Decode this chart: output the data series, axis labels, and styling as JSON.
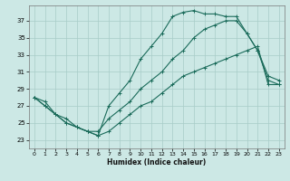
{
  "bg_color": "#cce8e5",
  "grid_color": "#a8ccc8",
  "line_color": "#1a6b5a",
  "xlabel": "Humidex (Indice chaleur)",
  "x_ticks": [
    0,
    1,
    2,
    3,
    4,
    5,
    6,
    7,
    8,
    9,
    10,
    11,
    12,
    13,
    14,
    15,
    16,
    17,
    18,
    19,
    20,
    21,
    22,
    23
  ],
  "y_ticks": [
    23,
    25,
    27,
    29,
    31,
    33,
    35,
    37
  ],
  "xlim": [
    -0.5,
    23.5
  ],
  "ylim": [
    22.0,
    38.8
  ],
  "series": [
    {
      "x": [
        0,
        1,
        2,
        3,
        4,
        5,
        6,
        7,
        8,
        9,
        10,
        11,
        12,
        13,
        14,
        15,
        16,
        17,
        18,
        19,
        20,
        21,
        22,
        23
      ],
      "y": [
        28,
        27,
        26,
        25,
        24.5,
        24,
        23.5,
        27,
        28.5,
        30,
        32.5,
        34,
        35.5,
        37.5,
        38.0,
        38.2,
        37.8,
        37.8,
        37.5,
        37.5,
        35.5,
        33.5,
        30.5,
        30.0
      ]
    },
    {
      "x": [
        0,
        1,
        2,
        3,
        4,
        5,
        6,
        7,
        8,
        9,
        10,
        11,
        12,
        13,
        14,
        15,
        16,
        17,
        18,
        19,
        20,
        21,
        22,
        23
      ],
      "y": [
        28,
        27.5,
        26,
        25.5,
        24.5,
        24,
        24,
        25.5,
        26.5,
        27.5,
        29,
        30,
        31,
        32.5,
        33.5,
        35,
        36,
        36.5,
        37,
        37,
        35.5,
        33.5,
        30.0,
        29.5
      ]
    },
    {
      "x": [
        0,
        1,
        2,
        3,
        4,
        5,
        6,
        7,
        8,
        9,
        10,
        11,
        12,
        13,
        14,
        15,
        16,
        17,
        18,
        19,
        20,
        21,
        22,
        23
      ],
      "y": [
        28,
        27,
        26,
        25,
        24.5,
        24,
        23.5,
        24,
        25,
        26,
        27,
        27.5,
        28.5,
        29.5,
        30.5,
        31.0,
        31.5,
        32.0,
        32.5,
        33.0,
        33.5,
        34.0,
        29.5,
        29.5
      ]
    }
  ]
}
